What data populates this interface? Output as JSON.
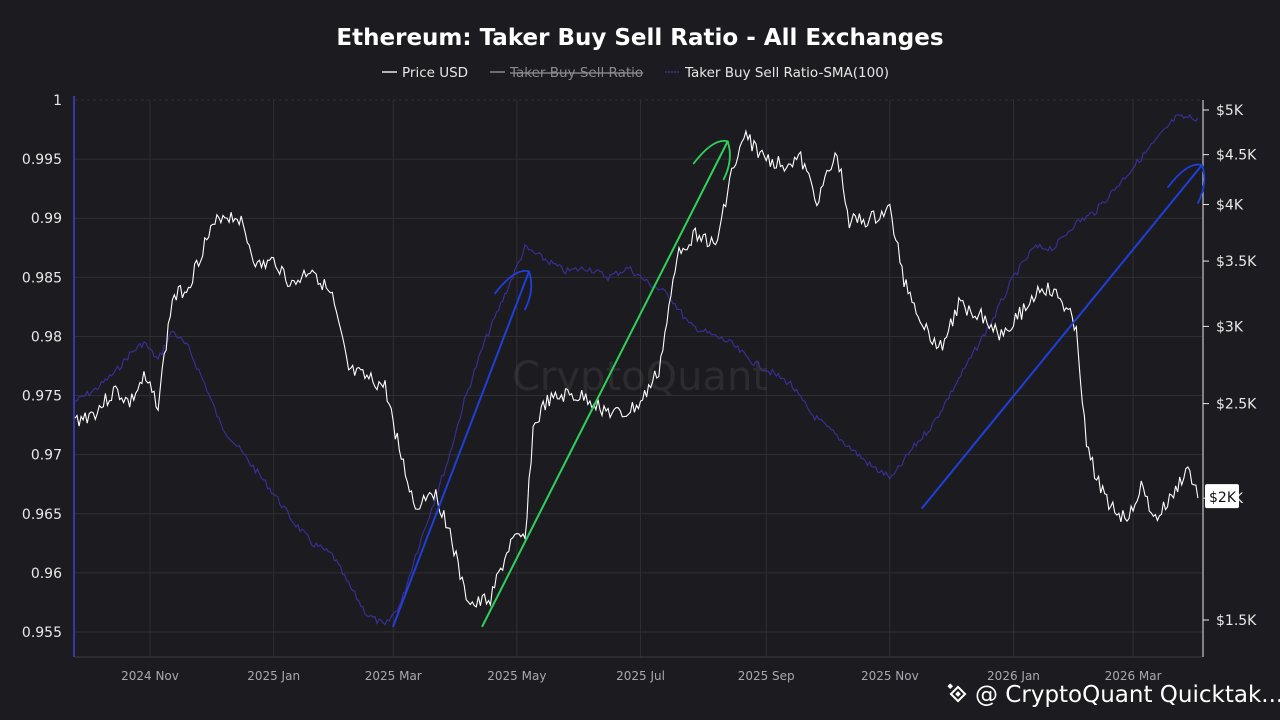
{
  "chart_data": {
    "type": "line",
    "title": "Ethereum: Taker Buy Sell Ratio - All Exchanges",
    "legend": {
      "placement": "top-center",
      "entries": [
        {
          "label": "Price USD",
          "color": "#ffffff",
          "visible": true
        },
        {
          "label": "Taker Buy Sell Ratio",
          "color": "#cccccc",
          "visible": false
        },
        {
          "label": "Taker Buy Sell Ratio-SMA(100)",
          "color": "#3a2f9c",
          "visible": true
        }
      ]
    },
    "x_axis": {
      "ticks": [
        "2024 Nov",
        "2025 Jan",
        "2025 Mar",
        "2025 May",
        "2025 Jul",
        "2025 Sep",
        "2025 Nov",
        "2026 Jan",
        "2026 Mar"
      ],
      "range": [
        "2024-09-25",
        "2026-04-04"
      ]
    },
    "y_left": {
      "range": [
        0.955,
        1
      ],
      "ticks": [
        "1",
        "0.995",
        "0.99",
        "0.985",
        "0.98",
        "0.975",
        "0.97",
        "0.965",
        "0.96",
        "0.955"
      ]
    },
    "y_right": {
      "scale": "log",
      "ticks": [
        {
          "label": "$5K",
          "value": 5000
        },
        {
          "label": "$4.5K",
          "value": 4500
        },
        {
          "label": "$4K",
          "value": 4000
        },
        {
          "label": "$3.5K",
          "value": 3500
        },
        {
          "label": "$3K",
          "value": 3000
        },
        {
          "label": "$2.5K",
          "value": 2500
        },
        {
          "label": "$2K",
          "value": 2000
        },
        {
          "label": "$1.5K",
          "value": 1500
        }
      ],
      "current_price_label": "$2K"
    },
    "grid": true,
    "series": [
      {
        "name": "Price USD",
        "color": "#ffffff",
        "axis": "right",
        "x": [
          "2024-09-25",
          "2024-10-05",
          "2024-10-15",
          "2024-10-22",
          "2024-10-29",
          "2024-11-05",
          "2024-11-12",
          "2024-11-20",
          "2024-11-28",
          "2024-12-06",
          "2024-12-15",
          "2024-12-24",
          "2025-01-02",
          "2025-01-10",
          "2025-01-20",
          "2025-01-30",
          "2025-02-07",
          "2025-02-16",
          "2025-02-25",
          "2025-03-05",
          "2025-03-12",
          "2025-03-20",
          "2025-03-28",
          "2025-04-05",
          "2025-04-10",
          "2025-04-18",
          "2025-04-28",
          "2025-05-05",
          "2025-05-09",
          "2025-05-15",
          "2025-05-25",
          "2025-06-05",
          "2025-06-15",
          "2025-06-22",
          "2025-07-01",
          "2025-07-10",
          "2025-07-20",
          "2025-07-30",
          "2025-08-07",
          "2025-08-14",
          "2025-08-22",
          "2025-08-30",
          "2025-09-08",
          "2025-09-18",
          "2025-09-26",
          "2025-10-06",
          "2025-10-12",
          "2025-10-22",
          "2025-11-01",
          "2025-11-08",
          "2025-11-18",
          "2025-11-26",
          "2025-12-05",
          "2025-12-15",
          "2025-12-25",
          "2026-01-05",
          "2026-01-15",
          "2026-01-24",
          "2026-02-01",
          "2026-02-06",
          "2026-02-15",
          "2026-02-25",
          "2026-03-05",
          "2026-03-12",
          "2026-03-20",
          "2026-03-28",
          "2026-04-02"
        ],
        "values": [
          2400,
          2450,
          2580,
          2500,
          2650,
          2500,
          3200,
          3300,
          3650,
          3900,
          3880,
          3450,
          3500,
          3300,
          3450,
          3200,
          2700,
          2650,
          2600,
          2200,
          1950,
          2050,
          1880,
          1600,
          1550,
          1580,
          1800,
          1820,
          2350,
          2500,
          2550,
          2530,
          2450,
          2430,
          2500,
          2700,
          3600,
          3750,
          3600,
          4250,
          4700,
          4480,
          4400,
          4450,
          4050,
          4500,
          3850,
          3850,
          3950,
          3350,
          3000,
          2850,
          3150,
          3100,
          2950,
          3100,
          3300,
          3200,
          3000,
          2250,
          2000,
          1900,
          2050,
          1900,
          2000,
          2150,
          2000
        ]
      },
      {
        "name": "Taker Buy Sell Ratio-SMA(100)",
        "color": "#3a2f9c",
        "axis": "left",
        "x": [
          "2024-09-25",
          "2024-10-05",
          "2024-10-15",
          "2024-10-22",
          "2024-10-29",
          "2024-11-05",
          "2024-11-12",
          "2024-11-20",
          "2024-11-28",
          "2024-12-06",
          "2024-12-15",
          "2024-12-24",
          "2025-01-02",
          "2025-01-10",
          "2025-01-20",
          "2025-01-30",
          "2025-02-07",
          "2025-02-16",
          "2025-02-25",
          "2025-03-05",
          "2025-03-12",
          "2025-03-20",
          "2025-03-28",
          "2025-04-05",
          "2025-04-15",
          "2025-04-25",
          "2025-05-05",
          "2025-05-15",
          "2025-05-25",
          "2025-06-05",
          "2025-06-15",
          "2025-06-25",
          "2025-07-05",
          "2025-07-15",
          "2025-07-25",
          "2025-08-04",
          "2025-08-14",
          "2025-08-24",
          "2025-09-03",
          "2025-09-13",
          "2025-09-23",
          "2025-10-03",
          "2025-10-13",
          "2025-10-23",
          "2025-11-02",
          "2025-11-12",
          "2025-11-22",
          "2025-12-02",
          "2025-12-12",
          "2025-12-22",
          "2026-01-01",
          "2026-01-11",
          "2026-01-21",
          "2026-01-31",
          "2026-02-10",
          "2026-02-20",
          "2026-03-02",
          "2026-03-12",
          "2026-03-22",
          "2026-04-02"
        ],
        "values": [
          0.9745,
          0.9755,
          0.977,
          0.9785,
          0.9795,
          0.978,
          0.9805,
          0.979,
          0.976,
          0.9725,
          0.9705,
          0.9685,
          0.9665,
          0.9645,
          0.9625,
          0.9615,
          0.959,
          0.9565,
          0.9555,
          0.9575,
          0.9615,
          0.9655,
          0.9695,
          0.9745,
          0.9795,
          0.9835,
          0.9875,
          0.9865,
          0.9855,
          0.9858,
          0.985,
          0.9858,
          0.9845,
          0.9835,
          0.981,
          0.9802,
          0.9795,
          0.978,
          0.977,
          0.976,
          0.9735,
          0.972,
          0.9705,
          0.969,
          0.968,
          0.9705,
          0.9725,
          0.9755,
          0.9785,
          0.9815,
          0.985,
          0.9875,
          0.9875,
          0.9895,
          0.9905,
          0.9925,
          0.9945,
          0.9965,
          0.9985,
          0.9985
        ]
      }
    ],
    "annotations": [
      {
        "type": "arrow",
        "color": "#1f3fd9",
        "from": [
          "2025-03-01",
          0.9555
        ],
        "to": [
          "2025-05-07",
          0.9855
        ]
      },
      {
        "type": "arrow",
        "color": "#2ed25a",
        "from": [
          "2025-04-14",
          0.9555
        ],
        "to": [
          "2025-08-13",
          0.9965
        ]
      },
      {
        "type": "arrow",
        "color": "#1f3fd9",
        "from": [
          "2025-11-17",
          0.9655
        ],
        "to": [
          "2026-04-04",
          0.9945
        ]
      }
    ]
  },
  "watermark": "CryptoQuant",
  "credit": {
    "text": "@ CryptoQuant Quicktak...",
    "icon": "binance-diamond-icon"
  },
  "colors": {
    "background": "#1c1c20",
    "grid": "#2e2e34",
    "price": "#ffffff",
    "sma": "#3a2f9c",
    "axis_accent": "#3d32b0"
  }
}
